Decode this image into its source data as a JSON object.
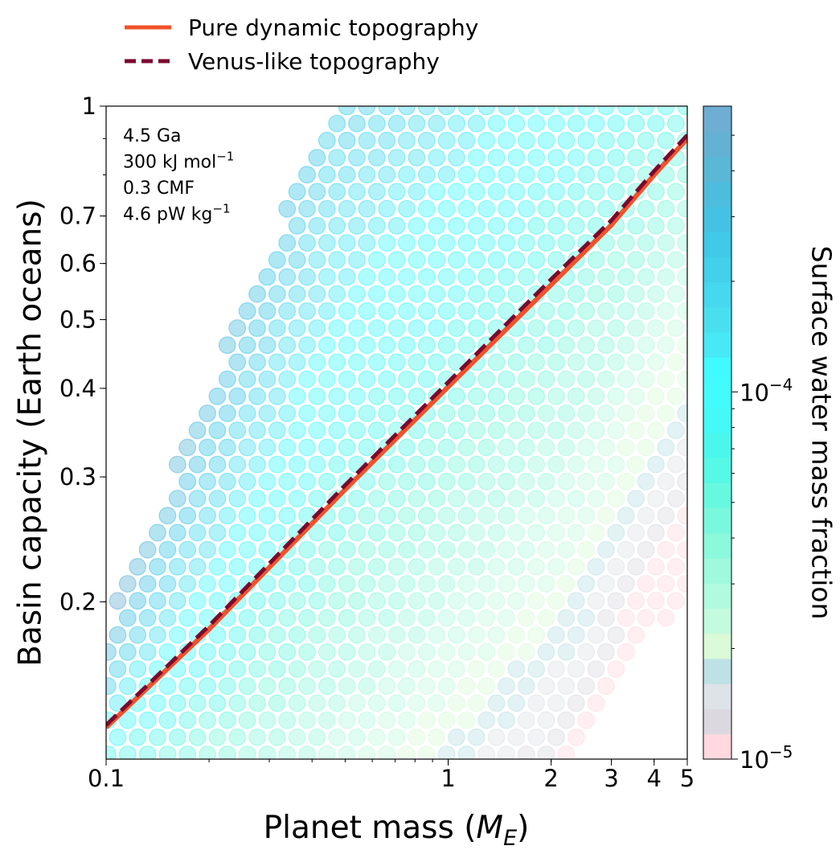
{
  "chart_data": {
    "type": "scatter",
    "title": "",
    "xlabel": "Planet mass (",
    "xlabel_math": "M",
    "xlabel_sub": "E",
    "xlabel_close": ")",
    "ylabel": "Basin capacity (Earth oceans)",
    "xscale": "log",
    "yscale": "log",
    "xlim": [
      0.1,
      5
    ],
    "ylim": [
      0.12,
      1
    ],
    "xticks": [
      {
        "value": 0.1,
        "label": "0.1"
      },
      {
        "value": 1,
        "label": "1"
      },
      {
        "value": 2,
        "label": "2"
      },
      {
        "value": 3,
        "label": "3"
      },
      {
        "value": 4,
        "label": "4"
      },
      {
        "value": 5,
        "label": "5"
      }
    ],
    "yticks": [
      {
        "value": 0.2,
        "label": "0.2"
      },
      {
        "value": 0.3,
        "label": "0.3"
      },
      {
        "value": 0.4,
        "label": "0.4"
      },
      {
        "value": 0.5,
        "label": "0.5"
      },
      {
        "value": 0.6,
        "label": "0.6"
      },
      {
        "value": 0.7,
        "label": "0.7"
      },
      {
        "value": 1,
        "label": "1"
      }
    ],
    "annotations": [
      {
        "text": "4.5 Ga",
        "sup": ""
      },
      {
        "text": "300 kJ mol",
        "sup": "−1"
      },
      {
        "text": "0.3 CMF",
        "sup": ""
      },
      {
        "text": "4.6 pW kg",
        "sup": "−1"
      }
    ],
    "legend": {
      "placement": "above",
      "entries": [
        {
          "label": "Pure dynamic topography",
          "color": "#f0522a",
          "style": "solid"
        },
        {
          "label": "Venus-like topography",
          "color": "#7a0a2e",
          "style": "dashed"
        }
      ]
    },
    "series": [
      {
        "name": "Pure dynamic topography",
        "color": "#f0522a",
        "x": [
          0.1,
          0.2,
          0.5,
          1,
          2,
          3,
          4,
          5
        ],
        "y": [
          0.133,
          0.183,
          0.288,
          0.402,
          0.56,
          0.68,
          0.8,
          0.9
        ]
      },
      {
        "name": "Venus-like topography",
        "color": "#7a0a2e",
        "x": [
          0.1,
          0.2,
          0.5,
          1,
          2,
          3,
          4,
          5
        ],
        "y": [
          0.134,
          0.185,
          0.292,
          0.408,
          0.57,
          0.69,
          0.81,
          0.91
        ]
      }
    ],
    "scatter_grid": {
      "note_region": "points fill the band between the upper-left boundary and the lower-right boundary",
      "upper_boundary": {
        "x": [
          0.1,
          0.45,
          5
        ],
        "y": [
          0.185,
          1,
          1
        ]
      },
      "lower_boundary": {
        "x": [
          0.1,
          2.3,
          5
        ],
        "y": [
          0.12,
          0.12,
          0.21
        ]
      },
      "color_value": "surface water mass fraction, decreasing with planet mass and with lower basin capacity"
    },
    "colorbar": {
      "label": "Surface water mass fraction",
      "scale": "log",
      "range": [
        1e-05,
        0.0006
      ],
      "tick_labels": [
        {
          "value": 1e-05,
          "base": "10",
          "exp": "−5"
        },
        {
          "value": 0.0001,
          "base": "10",
          "exp": "−4"
        }
      ],
      "colors": [
        "#ffd8e0",
        "#dcd8e0",
        "#dde3e8",
        "#bde1e5",
        "#dafad8",
        "#c4fade",
        "#b2fadf",
        "#9ef9dd",
        "#8cf8dc",
        "#7af8dd",
        "#68f8e0",
        "#56f8e6",
        "#4bf7ec",
        "#45f9f7",
        "#43fbfc",
        "#40faff",
        "#46e9f5",
        "#48e0ef",
        "#45d8ee",
        "#42d0ea",
        "#40c9e8",
        "#45c2e3",
        "#4ebcdc",
        "#5ab7d6",
        "#64b2d3",
        "#6eaed2"
      ]
    }
  }
}
